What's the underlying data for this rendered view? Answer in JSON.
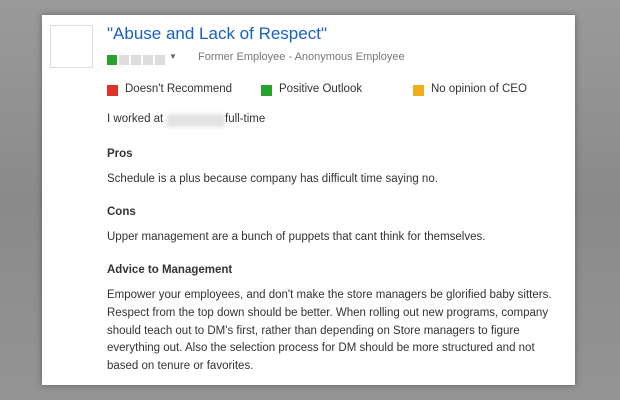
{
  "review": {
    "title": "\"Abuse and Lack of Respect\"",
    "rating": 1,
    "max_rating": 5,
    "author": "Former Employee - Anonymous Employee",
    "indicators": [
      "Doesn't Recommend",
      "Positive Outlook",
      "No opinion of CEO"
    ],
    "employment_prefix": "I worked at",
    "employment_suffix": "full-time",
    "pros_heading": "Pros",
    "pros": "Schedule is a plus because company has difficult time saying no.",
    "cons_heading": "Cons",
    "cons": "Upper management are a bunch of puppets that cant think for themselves.",
    "advice_heading": "Advice to Management",
    "advice": [
      "Empower your employees, and don't make the store managers be glorified baby sitters.",
      "Respect from the top down should be better. When rolling out new programs, company",
      "should teach out to DM's first, rather than depending on Store managers to figure",
      "everything out. Also the selection process for DM should be more structured and not",
      "based on tenure or favorites."
    ]
  }
}
